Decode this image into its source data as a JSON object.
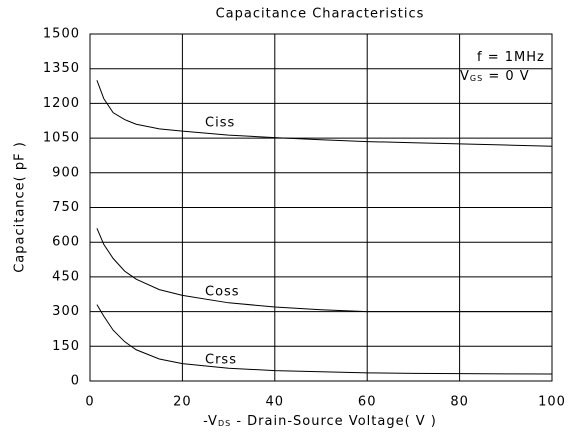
{
  "chart_data": {
    "type": "line",
    "title": "Capacitance Characteristics",
    "y_label": "Capacitance( pF )",
    "x_label": [
      "-V",
      "DS",
      " - Drain-Source Voltage( V )"
    ],
    "annotations": [
      [
        "f  =  1MHz"
      ],
      [
        "V",
        "GS",
        " = 0 V"
      ]
    ],
    "x": [
      1.5,
      3,
      5,
      7.5,
      10,
      15,
      20,
      30,
      40,
      50,
      60,
      70,
      80,
      90,
      100
    ],
    "series": [
      {
        "name": "Ciss",
        "color": "#000000",
        "values": [
          1300,
          1220,
          1160,
          1130,
          1110,
          1090,
          1080,
          1063,
          1052,
          1043,
          1035,
          1030,
          1025,
          1020,
          1015
        ]
      },
      {
        "name": "Coss",
        "color": "#000000",
        "values": [
          660,
          590,
          530,
          475,
          440,
          395,
          370,
          338,
          320,
          308,
          300,
          300,
          300,
          300,
          300
        ]
      },
      {
        "name": "Crss",
        "color": "#000000",
        "values": [
          330,
          280,
          220,
          170,
          135,
          95,
          75,
          55,
          45,
          40,
          35,
          33,
          32,
          31,
          30
        ]
      }
    ],
    "xlim": [
      0,
      100
    ],
    "xticks": [
      0,
      20,
      40,
      60,
      80,
      100
    ],
    "ylim": [
      0,
      1500
    ],
    "yticks": [
      0,
      150,
      300,
      450,
      600,
      750,
      900,
      1050,
      1200,
      1350,
      1500
    ],
    "grid": true
  }
}
